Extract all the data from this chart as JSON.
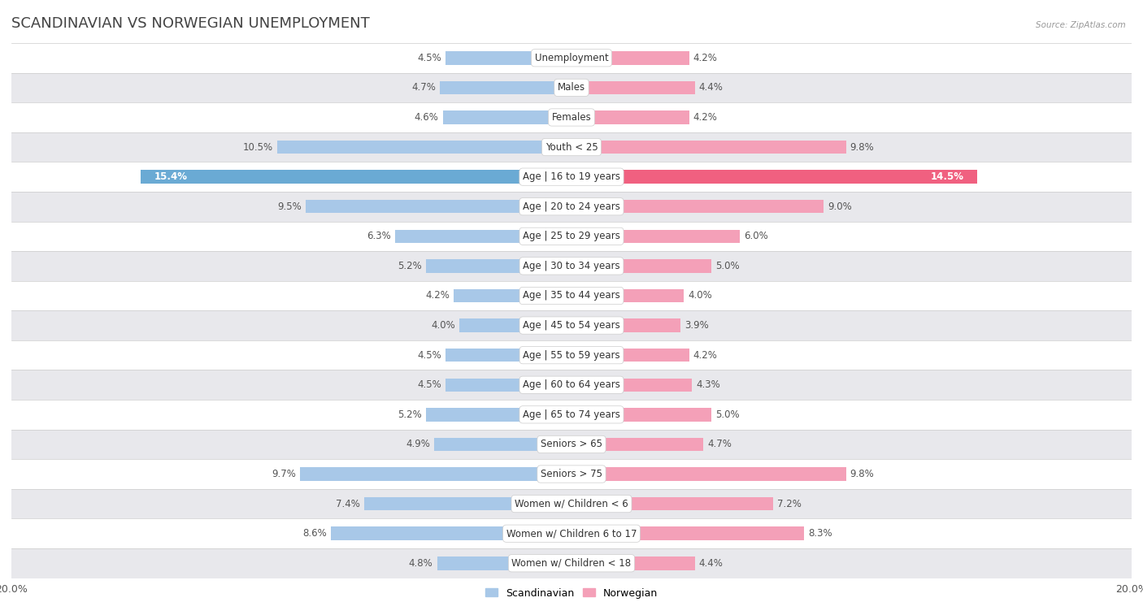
{
  "title": "SCANDINAVIAN VS NORWEGIAN UNEMPLOYMENT",
  "source": "Source: ZipAtlas.com",
  "categories": [
    "Unemployment",
    "Males",
    "Females",
    "Youth < 25",
    "Age | 16 to 19 years",
    "Age | 20 to 24 years",
    "Age | 25 to 29 years",
    "Age | 30 to 34 years",
    "Age | 35 to 44 years",
    "Age | 45 to 54 years",
    "Age | 55 to 59 years",
    "Age | 60 to 64 years",
    "Age | 65 to 74 years",
    "Seniors > 65",
    "Seniors > 75",
    "Women w/ Children < 6",
    "Women w/ Children 6 to 17",
    "Women w/ Children < 18"
  ],
  "scandinavian": [
    4.5,
    4.7,
    4.6,
    10.5,
    15.4,
    9.5,
    6.3,
    5.2,
    4.2,
    4.0,
    4.5,
    4.5,
    5.2,
    4.9,
    9.7,
    7.4,
    8.6,
    4.8
  ],
  "norwegian": [
    4.2,
    4.4,
    4.2,
    9.8,
    14.5,
    9.0,
    6.0,
    5.0,
    4.0,
    3.9,
    4.2,
    4.3,
    5.0,
    4.7,
    9.8,
    7.2,
    8.3,
    4.4
  ],
  "scandinavian_color": "#a8c8e8",
  "norwegian_color": "#f4a0b8",
  "scandinavian_color_highlight": "#6aaad4",
  "norwegian_color_highlight": "#f06080",
  "row_bg_white": "#ffffff",
  "row_bg_gray": "#e8e8ec",
  "separator_color": "#cccccc",
  "max_val": 20.0,
  "legend_scandinavian": "Scandinavian",
  "legend_norwegian": "Norwegian",
  "title_fontsize": 13,
  "label_fontsize": 8.5,
  "tick_fontsize": 9,
  "bar_height": 0.45,
  "highlight_rows": [
    4
  ]
}
